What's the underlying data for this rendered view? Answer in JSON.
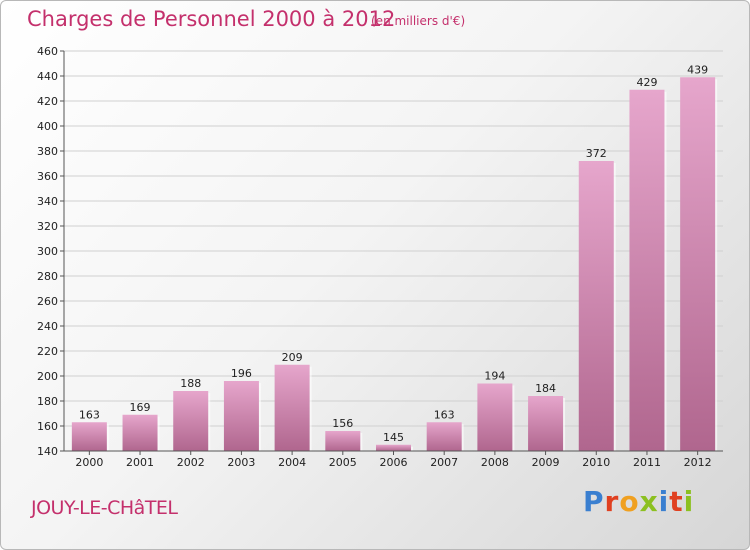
{
  "header": {
    "title": "Charges de Personnel 2000 à 2012",
    "subtitle": "(en milliers d'€)"
  },
  "footer": {
    "commune": "JOUY-LE-CHâTEL",
    "logo_letters": [
      "P",
      "r",
      "o",
      "x",
      "i",
      "t",
      "i"
    ]
  },
  "colors": {
    "accent": "#c4306c",
    "bar_top": "#e6a6cc",
    "bar_bottom": "#b0668e",
    "logo": [
      "#3a7fd0",
      "#e04020",
      "#f0a020",
      "#8cc020",
      "#3a7fd0",
      "#e04020",
      "#8cc020"
    ]
  },
  "chart_data": {
    "type": "bar",
    "title": "Charges de Personnel 2000 à 2012",
    "subtitle": "(en milliers d'€)",
    "categories": [
      "2000",
      "2001",
      "2002",
      "2003",
      "2004",
      "2005",
      "2006",
      "2007",
      "2008",
      "2009",
      "2010",
      "2011",
      "2012"
    ],
    "values": [
      163,
      169,
      188,
      196,
      209,
      156,
      145,
      163,
      194,
      184,
      372,
      429,
      439
    ],
    "ylim": [
      140,
      460
    ],
    "yticks": [
      140,
      160,
      180,
      200,
      220,
      240,
      260,
      280,
      300,
      320,
      340,
      360,
      380,
      400,
      420,
      440,
      460
    ],
    "grid": true,
    "legend": "none"
  }
}
